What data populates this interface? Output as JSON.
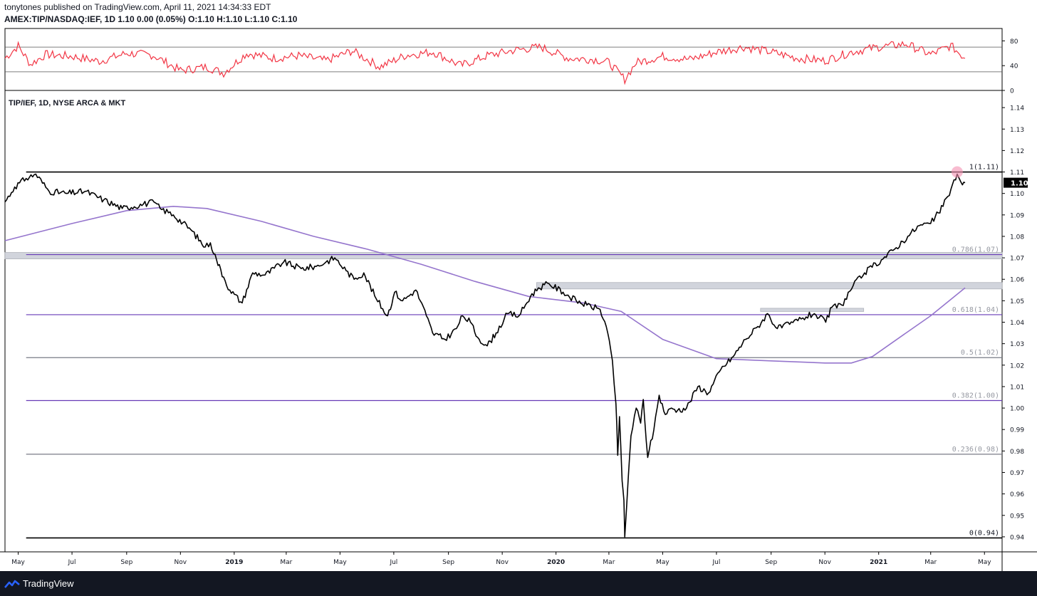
{
  "header": {
    "publisher_line": "tonytones published on TradingView.com, April 11, 2021 14:34:33 EDT",
    "symbol_line": "AMEX:TIP/NASDAQ:IEF, 1D  1.10 0.00 (0.05%) O:1.10 H:1.10 L:1.10 C:1.10"
  },
  "footer": {
    "brand": "TradingView"
  },
  "colors": {
    "price": "#000000",
    "ma": "#9575cd",
    "rsi": "#f23645",
    "fib_purple": "#673ab7",
    "fib_gray": "#787b86",
    "zone": "#d1d4dc",
    "highlight": "#f48fb1"
  },
  "chart_data": [
    {
      "type": "line",
      "title": "TIP/IEF, 1D, NYSE ARCA & MKT",
      "xlabel": "",
      "ylabel": "",
      "xlim": [
        "2018-04-16",
        "2021-05-21"
      ],
      "ylim": [
        0.933,
        1.148
      ],
      "x_tick_labels": [
        "May",
        "Jul",
        "Sep",
        "Nov",
        "2019",
        "Mar",
        "May",
        "Jul",
        "Sep",
        "Nov",
        "2020",
        "Mar",
        "May",
        "Jul",
        "Sep",
        "Nov",
        "2021",
        "Mar",
        "May"
      ],
      "y_tick_labels": [
        "0.94",
        "0.95",
        "0.96",
        "0.97",
        "0.98",
        "0.99",
        "1.00",
        "1.01",
        "1.02",
        "1.03",
        "1.04",
        "1.05",
        "1.06",
        "1.07",
        "1.08",
        "1.09",
        "1.10",
        "1.11",
        "1.12",
        "1.13",
        "1.14"
      ],
      "last_value_label": "1.10",
      "grid": false,
      "series": [
        {
          "name": "",
          "role": "price",
          "x": [
            "2018-04-16",
            "2018-04-27",
            "2018-05-10",
            "2018-05-21",
            "2018-06-05",
            "2018-06-25",
            "2018-07-16",
            "2018-08-06",
            "2018-08-27",
            "2018-09-20",
            "2018-10-02",
            "2018-10-09",
            "2018-10-24",
            "2018-11-13",
            "2018-11-29",
            "2018-12-05",
            "2018-12-12",
            "2018-12-20",
            "2018-12-27",
            "2019-01-10",
            "2019-01-22",
            "2019-02-05",
            "2019-02-26",
            "2019-03-18",
            "2019-04-04",
            "2019-04-15",
            "2019-04-25",
            "2019-05-08",
            "2019-05-17",
            "2019-05-28",
            "2019-06-11",
            "2019-06-24",
            "2019-07-02",
            "2019-07-11",
            "2019-07-26",
            "2019-08-07",
            "2019-08-14",
            "2019-08-28",
            "2019-09-10",
            "2019-09-17",
            "2019-09-26",
            "2019-10-04",
            "2019-10-15",
            "2019-10-25",
            "2019-11-07",
            "2019-11-20",
            "2019-12-03",
            "2019-12-12",
            "2019-12-24",
            "2020-01-09",
            "2020-01-24",
            "2020-02-05",
            "2020-02-20",
            "2020-02-27",
            "2020-03-05",
            "2020-03-09",
            "2020-03-11",
            "2020-03-13",
            "2020-03-16",
            "2020-03-18",
            "2020-03-19",
            "2020-03-23",
            "2020-03-26",
            "2020-04-01",
            "2020-04-06",
            "2020-04-09",
            "2020-04-14",
            "2020-04-21",
            "2020-04-27",
            "2020-05-04",
            "2020-05-11",
            "2020-05-18",
            "2020-05-28",
            "2020-06-10",
            "2020-06-22",
            "2020-07-06",
            "2020-07-20",
            "2020-08-03",
            "2020-08-17",
            "2020-08-28",
            "2020-09-08",
            "2020-09-22",
            "2020-10-07",
            "2020-10-20",
            "2020-11-02",
            "2020-11-09",
            "2020-11-20",
            "2020-12-03",
            "2020-12-16",
            "2021-01-04",
            "2021-01-19",
            "2021-02-03",
            "2021-02-16",
            "2021-03-01",
            "2021-03-15",
            "2021-03-24",
            "2021-03-31",
            "2021-04-06",
            "2021-04-09"
          ],
          "y": [
            1.096,
            1.103,
            1.107,
            1.109,
            1.101,
            1.1,
            1.101,
            1.097,
            1.093,
            1.095,
            1.096,
            1.093,
            1.09,
            1.083,
            1.075,
            1.077,
            1.069,
            1.061,
            1.055,
            1.049,
            1.063,
            1.062,
            1.068,
            1.065,
            1.066,
            1.068,
            1.07,
            1.064,
            1.06,
            1.063,
            1.051,
            1.043,
            1.054,
            1.05,
            1.055,
            1.043,
            1.035,
            1.032,
            1.037,
            1.043,
            1.04,
            1.033,
            1.029,
            1.035,
            1.044,
            1.043,
            1.052,
            1.056,
            1.058,
            1.054,
            1.05,
            1.048,
            1.046,
            1.038,
            1.022,
            1.002,
            0.978,
            0.996,
            0.966,
            0.957,
            0.94,
            0.968,
            0.987,
            1.0,
            0.993,
            1.004,
            0.977,
            0.99,
            1.006,
            0.997,
            1.0,
            0.999,
            1.0,
            1.01,
            1.007,
            1.018,
            1.024,
            1.032,
            1.038,
            1.044,
            1.037,
            1.039,
            1.042,
            1.044,
            1.04,
            1.047,
            1.048,
            1.057,
            1.063,
            1.069,
            1.074,
            1.08,
            1.085,
            1.086,
            1.094,
            1.102,
            1.109,
            1.104,
            1.105
          ]
        },
        {
          "name": "",
          "role": "moving-average",
          "x": [
            "2018-04-16",
            "2018-07-01",
            "2018-09-01",
            "2018-10-24",
            "2018-12-01",
            "2019-02-01",
            "2019-04-01",
            "2019-06-01",
            "2019-08-01",
            "2019-10-01",
            "2019-12-01",
            "2020-02-01",
            "2020-03-15",
            "2020-05-01",
            "2020-07-01",
            "2020-09-01",
            "2020-11-01",
            "2020-12-01",
            "2020-12-25",
            "2021-02-01",
            "2021-03-01",
            "2021-04-09"
          ],
          "y": [
            1.078,
            1.086,
            1.092,
            1.094,
            1.093,
            1.087,
            1.08,
            1.074,
            1.067,
            1.059,
            1.052,
            1.049,
            1.045,
            1.032,
            1.023,
            1.022,
            1.021,
            1.021,
            1.024,
            1.035,
            1.043,
            1.056
          ]
        }
      ],
      "fib_levels": [
        {
          "label": "1(1.11)",
          "value": 1.11
        },
        {
          "label": "0.786(1.07)",
          "value": 1.0715
        },
        {
          "label": "0.618(1.04)",
          "value": 1.0435
        },
        {
          "label": "0.5(1.02)",
          "value": 1.0235
        },
        {
          "label": "0.382(1.00)",
          "value": 1.0035
        },
        {
          "label": "0.236(0.98)",
          "value": 0.9785
        },
        {
          "label": "0(0.94)",
          "value": 0.9395
        }
      ],
      "zones": [
        {
          "from": "2018-04-16",
          "to": "2021-05-21",
          "low": 1.0695,
          "high": 1.0725
        },
        {
          "from": "2019-12-10",
          "to": "2021-05-21",
          "low": 1.0555,
          "high": 1.0585
        },
        {
          "from": "2020-08-20",
          "to": "2020-12-15",
          "low": 1.045,
          "high": 1.0465
        }
      ],
      "highlight": {
        "x": "2021-03-31",
        "y": 1.11
      }
    },
    {
      "type": "line",
      "title": "",
      "ylim": [
        0,
        100
      ],
      "y_tick_labels": [
        "0",
        "40",
        "80"
      ],
      "hlines": [
        70,
        30
      ],
      "series": [
        {
          "name": "",
          "x": [
            "2018-04-16",
            "2018-05-01",
            "2018-05-15",
            "2018-06-01",
            "2018-07-01",
            "2018-08-01",
            "2018-09-01",
            "2018-10-01",
            "2018-11-01",
            "2018-12-01",
            "2018-12-20",
            "2019-01-15",
            "2019-02-15",
            "2019-03-15",
            "2019-04-15",
            "2019-05-15",
            "2019-06-15",
            "2019-07-15",
            "2019-08-15",
            "2019-09-15",
            "2019-10-15",
            "2019-11-15",
            "2019-12-15",
            "2020-01-15",
            "2020-02-15",
            "2020-03-01",
            "2020-03-19",
            "2020-04-01",
            "2020-05-01",
            "2020-06-01",
            "2020-07-01",
            "2020-08-01",
            "2020-09-01",
            "2020-10-01",
            "2020-11-01",
            "2020-12-01",
            "2021-01-01",
            "2021-02-01",
            "2021-03-01",
            "2021-03-24",
            "2021-04-09"
          ],
          "y": [
            52,
            72,
            42,
            58,
            55,
            47,
            60,
            57,
            32,
            38,
            28,
            60,
            52,
            56,
            48,
            64,
            38,
            57,
            62,
            40,
            56,
            65,
            70,
            52,
            50,
            45,
            18,
            45,
            55,
            50,
            62,
            70,
            62,
            52,
            48,
            62,
            70,
            75,
            58,
            72,
            52
          ]
        }
      ]
    }
  ]
}
